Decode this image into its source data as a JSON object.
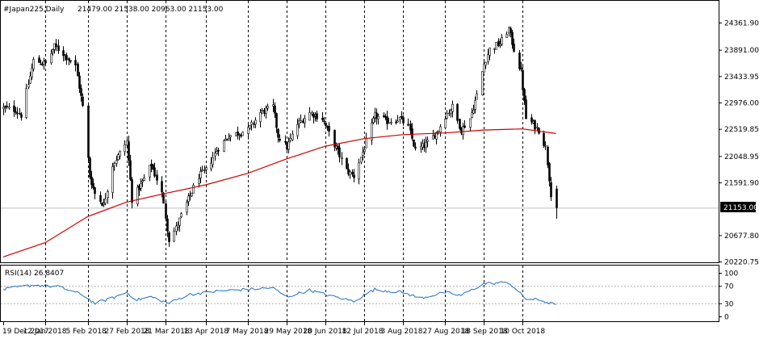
{
  "header": {
    "symbol_period": "#Japan225,Daily",
    "ohlc": "21479.00 21538.00 20963.00 21153.00"
  },
  "rsi_header": {
    "label": "RSI(14)",
    "value": "26.8407"
  },
  "colors": {
    "background": "#ffffff",
    "candle": "#000000",
    "moving_average": "#cc0000",
    "rsi_line": "#1f6fbf",
    "grid_separator": "#000000",
    "price_line": "#c0c0c0",
    "current_price_label_bg": "#000000",
    "current_price_label_text": "#ffffff"
  },
  "price_axis": {
    "labels": [
      "24361.90",
      "23891.00",
      "23433.95",
      "22976.00",
      "22519.85",
      "22048.95",
      "21591.90",
      "21153.00",
      "20677.80",
      "20220.75"
    ],
    "current_price": "21153.00"
  },
  "rsi_axis": {
    "labels": [
      "100",
      "70",
      "30",
      "0"
    ]
  },
  "time_axis": {
    "labels": [
      "19 Dec 2017",
      "12 Jan 2018",
      "5 Feb 2018",
      "27 Feb 2018",
      "21 Mar 2018",
      "13 Apr 2018",
      "7 May 2018",
      "29 May 2018",
      "20 Jun 2018",
      "12 Jul 2018",
      "3 Aug 2018",
      "27 Aug 2018",
      "18 Sep 2018",
      "10 Oct 2018"
    ]
  },
  "chart_data": {
    "type": "candlestick",
    "title": "#Japan225,Daily",
    "timeframe": "Daily",
    "last_bar": {
      "open": 21479.0,
      "high": 21538.0,
      "low": 20963.0,
      "close": 21153.0
    },
    "price_range": [
      20220.75,
      24600
    ],
    "grid": false,
    "vertical_separators": true,
    "close_path": [
      {
        "date": "2017-12-19",
        "close": 22880
      },
      {
        "date": "2017-12-26",
        "close": 22850
      },
      {
        "date": "2017-12-29",
        "close": 22760
      },
      {
        "date": "2018-01-05",
        "close": 23700
      },
      {
        "date": "2018-01-12",
        "close": 23650
      },
      {
        "date": "2018-01-17",
        "close": 23950
      },
      {
        "date": "2018-01-23",
        "close": 23800
      },
      {
        "date": "2018-01-29",
        "close": 23600
      },
      {
        "date": "2018-02-02",
        "close": 22900
      },
      {
        "date": "2018-02-06",
        "close": 21700
      },
      {
        "date": "2018-02-09",
        "close": 21400
      },
      {
        "date": "2018-02-14",
        "close": 21200
      },
      {
        "date": "2018-02-19",
        "close": 21900
      },
      {
        "date": "2018-02-27",
        "close": 22300
      },
      {
        "date": "2018-03-02",
        "close": 21300
      },
      {
        "date": "2018-03-08",
        "close": 21600
      },
      {
        "date": "2018-03-13",
        "close": 21900
      },
      {
        "date": "2018-03-19",
        "close": 21400
      },
      {
        "date": "2018-03-23",
        "close": 20600
      },
      {
        "date": "2018-03-27",
        "close": 20800
      },
      {
        "date": "2018-04-03",
        "close": 21300
      },
      {
        "date": "2018-04-09",
        "close": 21700
      },
      {
        "date": "2018-04-13",
        "close": 21800
      },
      {
        "date": "2018-04-20",
        "close": 22200
      },
      {
        "date": "2018-04-26",
        "close": 22400
      },
      {
        "date": "2018-05-07",
        "close": 22500
      },
      {
        "date": "2018-05-14",
        "close": 22800
      },
      {
        "date": "2018-05-21",
        "close": 22900
      },
      {
        "date": "2018-05-24",
        "close": 22400
      },
      {
        "date": "2018-05-29",
        "close": 22200
      },
      {
        "date": "2018-06-04",
        "close": 22600
      },
      {
        "date": "2018-06-11",
        "close": 22800
      },
      {
        "date": "2018-06-18",
        "close": 22700
      },
      {
        "date": "2018-06-25",
        "close": 22250
      },
      {
        "date": "2018-07-02",
        "close": 21800
      },
      {
        "date": "2018-07-06",
        "close": 21700
      },
      {
        "date": "2018-07-12",
        "close": 22200
      },
      {
        "date": "2018-07-18",
        "close": 22750
      },
      {
        "date": "2018-07-25",
        "close": 22650
      },
      {
        "date": "2018-08-01",
        "close": 22700
      },
      {
        "date": "2018-08-06",
        "close": 22550
      },
      {
        "date": "2018-08-10",
        "close": 22150
      },
      {
        "date": "2018-08-16",
        "close": 22250
      },
      {
        "date": "2018-08-22",
        "close": 22450
      },
      {
        "date": "2018-08-27",
        "close": 22750
      },
      {
        "date": "2018-08-31",
        "close": 22900
      },
      {
        "date": "2018-09-05",
        "close": 22500
      },
      {
        "date": "2018-09-10",
        "close": 22700
      },
      {
        "date": "2018-09-14",
        "close": 23100
      },
      {
        "date": "2018-09-18",
        "close": 23650
      },
      {
        "date": "2018-09-21",
        "close": 23900
      },
      {
        "date": "2018-09-27",
        "close": 24000
      },
      {
        "date": "2018-10-02",
        "close": 24250
      },
      {
        "date": "2018-10-05",
        "close": 23900
      },
      {
        "date": "2018-10-09",
        "close": 23500
      },
      {
        "date": "2018-10-12",
        "close": 22700
      },
      {
        "date": "2018-10-16",
        "close": 22600
      },
      {
        "date": "2018-10-19",
        "close": 22500
      },
      {
        "date": "2018-10-23",
        "close": 22200
      },
      {
        "date": "2018-10-26",
        "close": 21400
      },
      {
        "date": "2018-10-29",
        "close": 21153
      }
    ],
    "moving_average": {
      "name": "",
      "points": [
        {
          "date": "2017-12-19",
          "value": 20300
        },
        {
          "date": "2018-01-12",
          "value": 20550
        },
        {
          "date": "2018-02-05",
          "value": 21000
        },
        {
          "date": "2018-02-27",
          "value": 21250
        },
        {
          "date": "2018-03-21",
          "value": 21400
        },
        {
          "date": "2018-04-13",
          "value": 21550
        },
        {
          "date": "2018-05-07",
          "value": 21750
        },
        {
          "date": "2018-05-29",
          "value": 22000
        },
        {
          "date": "2018-06-20",
          "value": 22220
        },
        {
          "date": "2018-07-12",
          "value": 22350
        },
        {
          "date": "2018-08-03",
          "value": 22420
        },
        {
          "date": "2018-08-27",
          "value": 22450
        },
        {
          "date": "2018-09-18",
          "value": 22500
        },
        {
          "date": "2018-10-10",
          "value": 22520
        },
        {
          "date": "2018-10-29",
          "value": 22440
        }
      ]
    },
    "rsi": {
      "period": 14,
      "last": 26.8407,
      "levels": [
        70,
        30
      ],
      "ylim": [
        0,
        100
      ],
      "points": [
        {
          "date": "2017-12-19",
          "value": 62
        },
        {
          "date": "2018-01-05",
          "value": 72
        },
        {
          "date": "2018-01-19",
          "value": 68
        },
        {
          "date": "2018-02-02",
          "value": 50
        },
        {
          "date": "2018-02-09",
          "value": 30
        },
        {
          "date": "2018-02-19",
          "value": 42
        },
        {
          "date": "2018-02-27",
          "value": 55
        },
        {
          "date": "2018-03-05",
          "value": 38
        },
        {
          "date": "2018-03-13",
          "value": 45
        },
        {
          "date": "2018-03-23",
          "value": 30
        },
        {
          "date": "2018-04-03",
          "value": 50
        },
        {
          "date": "2018-04-20",
          "value": 58
        },
        {
          "date": "2018-05-07",
          "value": 62
        },
        {
          "date": "2018-05-21",
          "value": 66
        },
        {
          "date": "2018-05-29",
          "value": 45
        },
        {
          "date": "2018-06-11",
          "value": 60
        },
        {
          "date": "2018-06-25",
          "value": 45
        },
        {
          "date": "2018-07-06",
          "value": 35
        },
        {
          "date": "2018-07-18",
          "value": 62
        },
        {
          "date": "2018-08-03",
          "value": 55
        },
        {
          "date": "2018-08-13",
          "value": 42
        },
        {
          "date": "2018-08-27",
          "value": 55
        },
        {
          "date": "2018-09-05",
          "value": 48
        },
        {
          "date": "2018-09-18",
          "value": 75
        },
        {
          "date": "2018-10-02",
          "value": 78
        },
        {
          "date": "2018-10-12",
          "value": 40
        },
        {
          "date": "2018-10-19",
          "value": 38
        },
        {
          "date": "2018-10-29",
          "value": 26.8407
        }
      ]
    }
  }
}
